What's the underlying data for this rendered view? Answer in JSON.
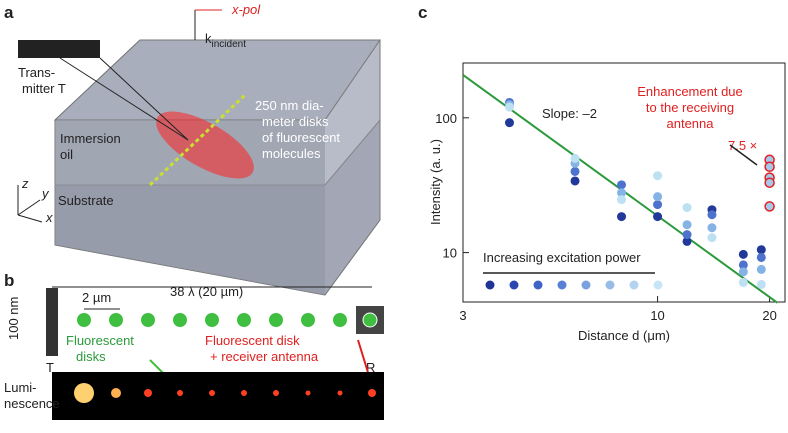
{
  "panel_a": {
    "letter": "a",
    "polarization": "x-pol",
    "k_symbol": "k",
    "k_subscript": "incident",
    "transmitter": [
      "Trans-",
      "mitter T"
    ],
    "disks": [
      "250 nm dia-",
      "meter disks",
      "of fluorescent",
      "molecules"
    ],
    "oil": [
      "Immersion",
      "oil"
    ],
    "substrate": "Substrate",
    "axes": [
      "z",
      "y",
      "x"
    ]
  },
  "panel_b": {
    "letter": "b",
    "spacing": "2 µm",
    "length": "38 λ (20 µm)",
    "width": "100 nm",
    "disks": [
      "Fluorescent",
      "disks"
    ],
    "antenna": [
      "Fluorescent disk",
      "+ receiver antenna"
    ],
    "t": "T",
    "r": "R",
    "luminescence": [
      "Lumi-",
      "nescence"
    ]
  },
  "chart_data": {
    "type": "scatter",
    "letter": "c",
    "xlabel": "Distance d (μm)",
    "ylabel": "Intensity (a. u.)",
    "log_x": true,
    "log_y": true,
    "xlim": [
      3,
      22
    ],
    "ylim": [
      4.3,
      255
    ],
    "xticks": [
      3,
      10,
      20
    ],
    "yticks": [
      10,
      100
    ],
    "series": [
      {
        "color": "#23399a",
        "x": [
          4,
          6,
          8,
          10,
          12,
          14,
          17,
          19
        ],
        "values": [
          92,
          34,
          18.5,
          18.5,
          12.1,
          20.8,
          9.7,
          10.5
        ]
      },
      {
        "color": "#4d73cc",
        "x": [
          4,
          6,
          8,
          10,
          12,
          14,
          17,
          19
        ],
        "values": [
          130,
          40,
          31.8,
          22.7,
          13.6,
          19.1,
          8.1,
          9.2
        ]
      },
      {
        "color": "#86b3e6",
        "x": [
          4,
          6,
          8,
          10,
          12,
          14,
          17,
          19
        ],
        "values": [
          125,
          46,
          27.8,
          26,
          16.1,
          15.3,
          7.2,
          7.5
        ]
      },
      {
        "color": "#bde0f3",
        "x": [
          4,
          6,
          8,
          10,
          12,
          14,
          17,
          19
        ],
        "values": [
          120,
          50,
          24.7,
          37.2,
          21.6,
          12.9,
          6.0,
          5.8
        ]
      },
      {
        "color": "#e02020",
        "x": [
          20,
          20,
          20,
          20,
          20
        ],
        "values": [
          48.8,
          43.3,
          36,
          33,
          22
        ]
      }
    ],
    "fit": {
      "label": "Slope: –2",
      "color": "#2a9a3a",
      "x": [
        3,
        21
      ],
      "values": [
        208,
        4.24
      ]
    },
    "enhancement": [
      "Enhancement due",
      "to the receiving",
      "antenna"
    ],
    "factor": "7.5 ×",
    "power": {
      "label": "Increasing excitation power",
      "colors": [
        "#1f3494",
        "#2c48b0",
        "#3f62c6",
        "#5a80d4",
        "#7aa0de",
        "#98bce8",
        "#b3d3f0",
        "#c9e4f6"
      ]
    }
  }
}
